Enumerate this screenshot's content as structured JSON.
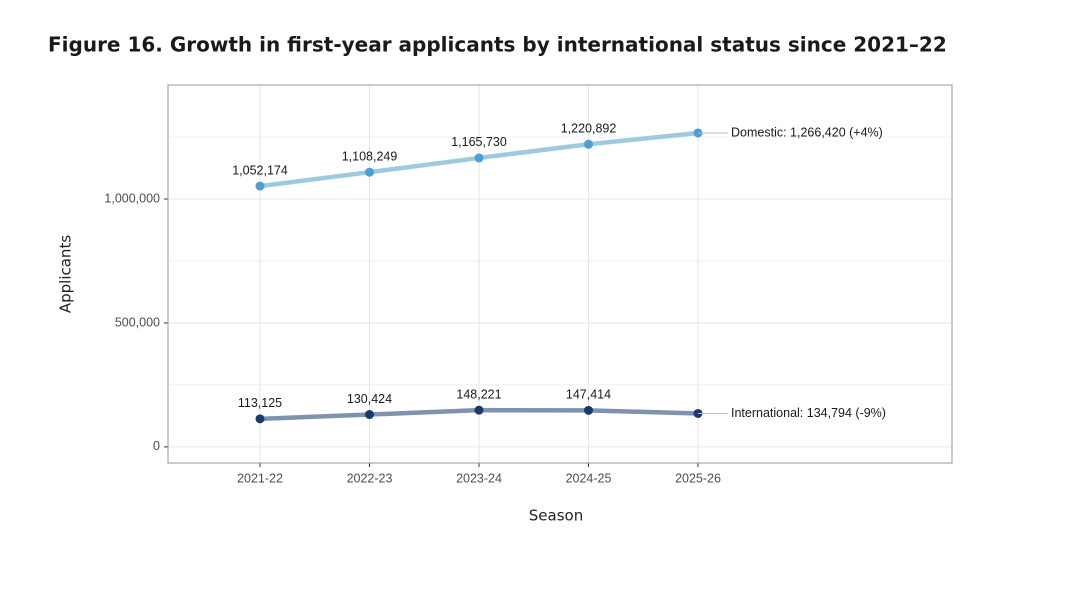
{
  "chart_data": {
    "type": "line",
    "title": "Figure 16. Growth in first-year applicants by international status since 2021–22",
    "xlabel": "Season",
    "ylabel": "Applicants",
    "categories": [
      "2021-22",
      "2022-23",
      "2023-24",
      "2024-25",
      "2025-26"
    ],
    "series": [
      {
        "name": "Domestic",
        "color": "#9ecae1",
        "marker_color": "#4a9fd4",
        "values": [
          1052174,
          1108249,
          1165730,
          1220892,
          1266420
        ],
        "value_labels": [
          "1,052,174",
          "1,108,249",
          "1,165,730",
          "1,220,892",
          null
        ],
        "end_label": "Domestic: 1,266,420 (+4%)"
      },
      {
        "name": "International",
        "color": "#7f93b0",
        "marker_color": "#1a3a6e",
        "values": [
          113125,
          130424,
          148221,
          147414,
          134794
        ],
        "value_labels": [
          "113,125",
          "130,424",
          "148,221",
          "147,414",
          null
        ],
        "end_label": "International: 134,794 (-9%)"
      }
    ],
    "ylim": [
      -65000,
      1460000
    ],
    "yticks": [
      0,
      {
        "value": 500000,
        "label": "500,000"
      },
      {
        "value": 1000000,
        "label": "1,000,000"
      }
    ],
    "grid": true
  }
}
